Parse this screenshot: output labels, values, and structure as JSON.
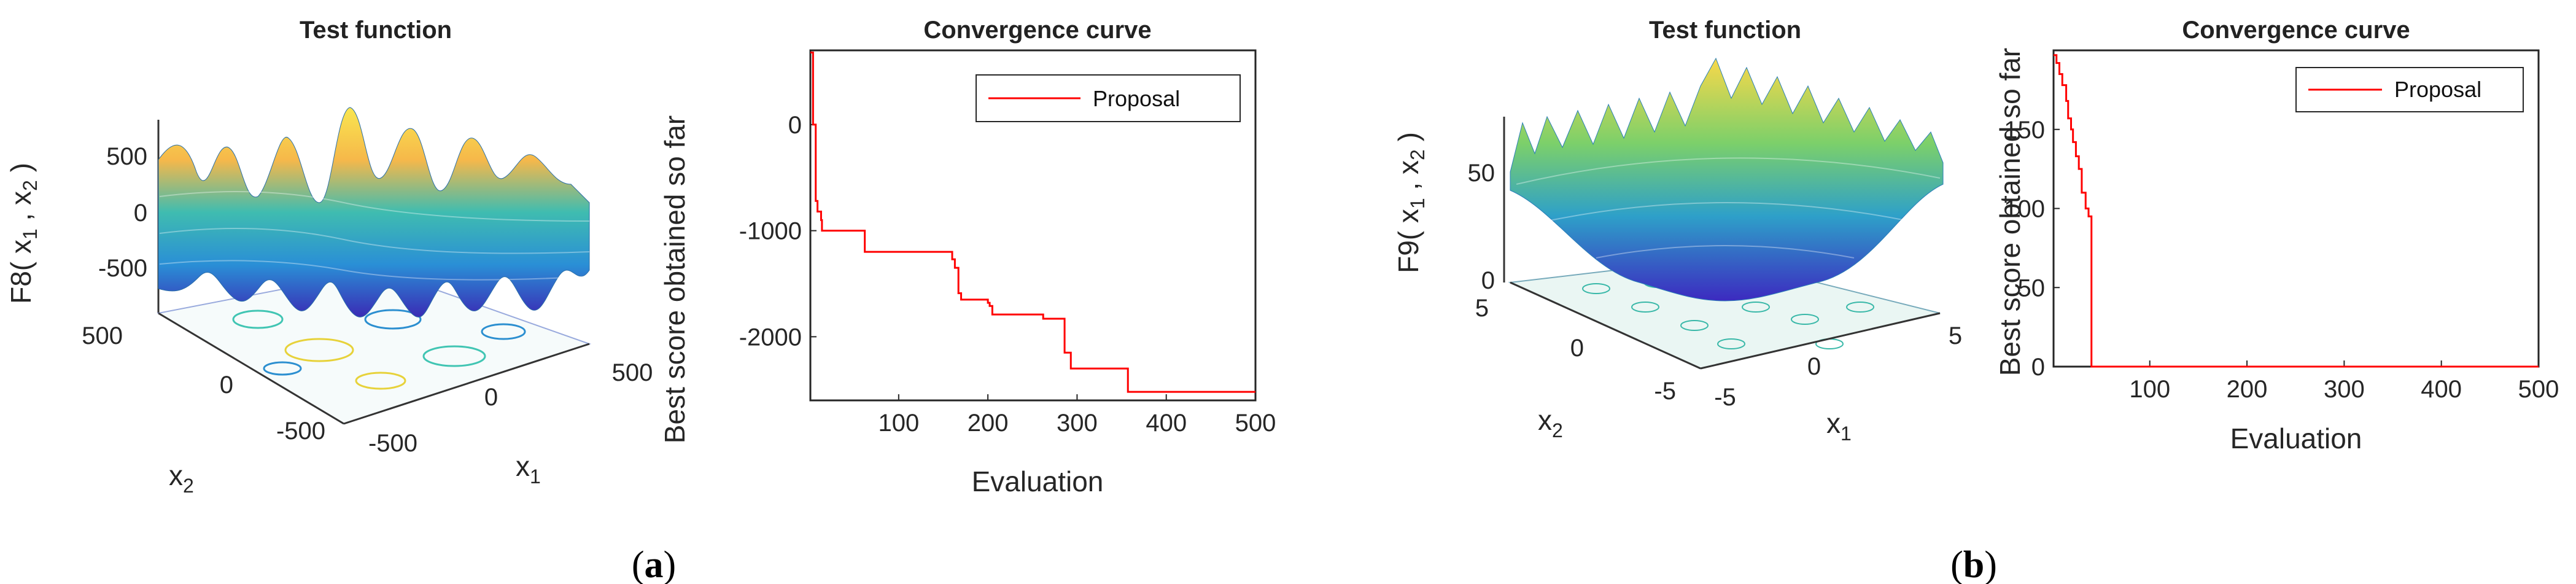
{
  "panels": [
    {
      "caption": "a",
      "surface_plot": {
        "title": "Test function",
        "zlabel": "F8( x",
        "zlabel_sub1": "1",
        "zlabel_mid": " , x",
        "zlabel_sub2": "2",
        "zlabel_end": " )",
        "z_ticks": [
          "500",
          "0",
          "-500"
        ],
        "x1_label": "x",
        "x1_sub": "1",
        "x2_label": "x",
        "x2_sub": "2",
        "x1_ticks": [
          "-500",
          "0",
          "500"
        ],
        "x2_ticks": [
          "500",
          "0",
          "-500"
        ]
      },
      "convergence": {
        "title": "Convergence curve",
        "legend": "Proposal",
        "color": "#ff0000"
      }
    },
    {
      "caption": "b",
      "surface_plot": {
        "title": "Test function",
        "zlabel": "F9( x",
        "zlabel_sub1": "1",
        "zlabel_mid": " , x",
        "zlabel_sub2": "2",
        "zlabel_end": " )",
        "z_ticks": [
          "50",
          "0"
        ],
        "x1_label": "x",
        "x1_sub": "1",
        "x2_label": "x",
        "x2_sub": "2",
        "x1_ticks": [
          "-5",
          "0",
          "5"
        ],
        "x2_ticks": [
          "5",
          "0",
          "-5"
        ]
      },
      "convergence": {
        "title": "Convergence curve",
        "legend": "Proposal",
        "color": "#ff0000"
      }
    }
  ],
  "chart_data": [
    {
      "type": "line",
      "title": "Convergence curve",
      "xlabel": "Evaluation",
      "ylabel": "Best score obtained so far",
      "xlim": [
        1,
        500
      ],
      "ylim": [
        -2600,
        700
      ],
      "xticks": [
        100,
        200,
        300,
        400,
        500
      ],
      "yticks": [
        -2000,
        -1000,
        0
      ],
      "series": [
        {
          "name": "Proposal",
          "step": true,
          "x": [
            1,
            4,
            7,
            9,
            13,
            14,
            62,
            160,
            163,
            167,
            170,
            200,
            202,
            205,
            262,
            286,
            293,
            357,
            500
          ],
          "y": [
            680,
            0,
            -720,
            -820,
            -900,
            -1000,
            -1200,
            -1270,
            -1350,
            -1590,
            -1650,
            -1680,
            -1710,
            -1790,
            -1830,
            -2150,
            -2300,
            -2520,
            -2520
          ]
        }
      ]
    },
    {
      "type": "line",
      "title": "Convergence curve",
      "xlabel": "Evaluation",
      "ylabel": "Best score obtained so far",
      "xlim": [
        1,
        500
      ],
      "ylim": [
        0,
        200
      ],
      "xticks": [
        100,
        200,
        300,
        400,
        500
      ],
      "yticks": [
        0,
        50,
        100,
        150
      ],
      "series": [
        {
          "name": "Proposal",
          "step": true,
          "x": [
            1,
            4,
            7,
            10,
            14,
            16,
            19,
            21,
            24,
            27,
            30,
            34,
            37,
            40,
            500
          ],
          "y": [
            197,
            192,
            185,
            178,
            168,
            157,
            150,
            142,
            133,
            125,
            110,
            100,
            95,
            0,
            0
          ]
        }
      ]
    }
  ]
}
